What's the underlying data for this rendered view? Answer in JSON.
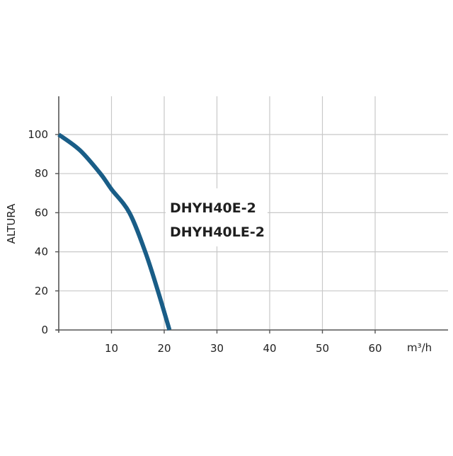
{
  "chart_data": {
    "type": "line",
    "title": "",
    "xlabel": "m³/h",
    "ylabel": "ALTURA",
    "xlim": [
      0,
      73
    ],
    "ylim": [
      0,
      120
    ],
    "x_ticks": [
      10,
      20,
      30,
      40,
      50,
      60
    ],
    "y_ticks": [
      0,
      20,
      40,
      60,
      80,
      100
    ],
    "grid": true,
    "legend": null,
    "annotations": [
      "DHYH40E-2",
      "DHYH40LE-2"
    ],
    "series": [
      {
        "name": "DHYH40E-2 / DHYH40LE-2",
        "color": "#195d87",
        "x": [
          0,
          4,
          7.9,
          10,
          13.4,
          16.4,
          18.8,
          21
        ],
        "y": [
          100,
          92,
          80,
          72,
          60,
          40,
          20,
          0
        ]
      }
    ]
  },
  "labels": {
    "y_axis_title": "ALTURA",
    "x_unit": "m³/h",
    "model_1": "DHYH40E-2",
    "model_2": "DHYH40LE-2",
    "x_ticks": [
      "10",
      "20",
      "30",
      "40",
      "50",
      "60"
    ],
    "y_ticks": [
      "0",
      "20",
      "40",
      "60",
      "80",
      "100"
    ]
  },
  "colors": {
    "curve": "#195d87",
    "grid": "#c8c8c8",
    "axis": "#555555",
    "text": "#222222"
  }
}
